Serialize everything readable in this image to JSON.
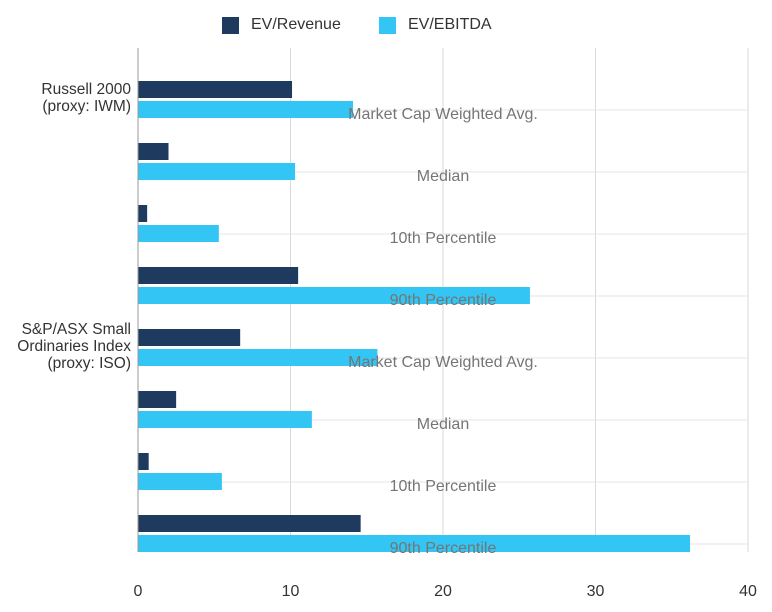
{
  "chart_data": {
    "type": "bar",
    "orientation": "horizontal",
    "title": "",
    "xlabel": "",
    "ylabel": "",
    "xlim": [
      0,
      40
    ],
    "x_ticks": [
      0,
      10,
      20,
      30,
      40
    ],
    "grid": true,
    "legend_position": "top-center",
    "series": [
      {
        "name": "EV/Revenue",
        "color": "#1f3a5f",
        "values": [
          10.1,
          2.0,
          0.6,
          10.5,
          6.7,
          2.5,
          0.7,
          14.6
        ]
      },
      {
        "name": "EV/EBITDA",
        "color": "#33c5f3",
        "values": [
          14.1,
          10.3,
          5.3,
          25.7,
          15.7,
          11.4,
          5.5,
          36.2
        ]
      }
    ],
    "groups": [
      {
        "label": "Russell 2000\n(proxy: IWM)",
        "categories": [
          "Market Cap Weighted Avg.",
          "Median",
          "10th Percentile",
          "90th Percentile"
        ]
      },
      {
        "label": "S&P/ASX Small\nOrdinaries Index\n(proxy: ISO)",
        "categories": [
          "Market Cap Weighted Avg.",
          "Median",
          "10th Percentile",
          "90th Percentile"
        ]
      }
    ]
  }
}
